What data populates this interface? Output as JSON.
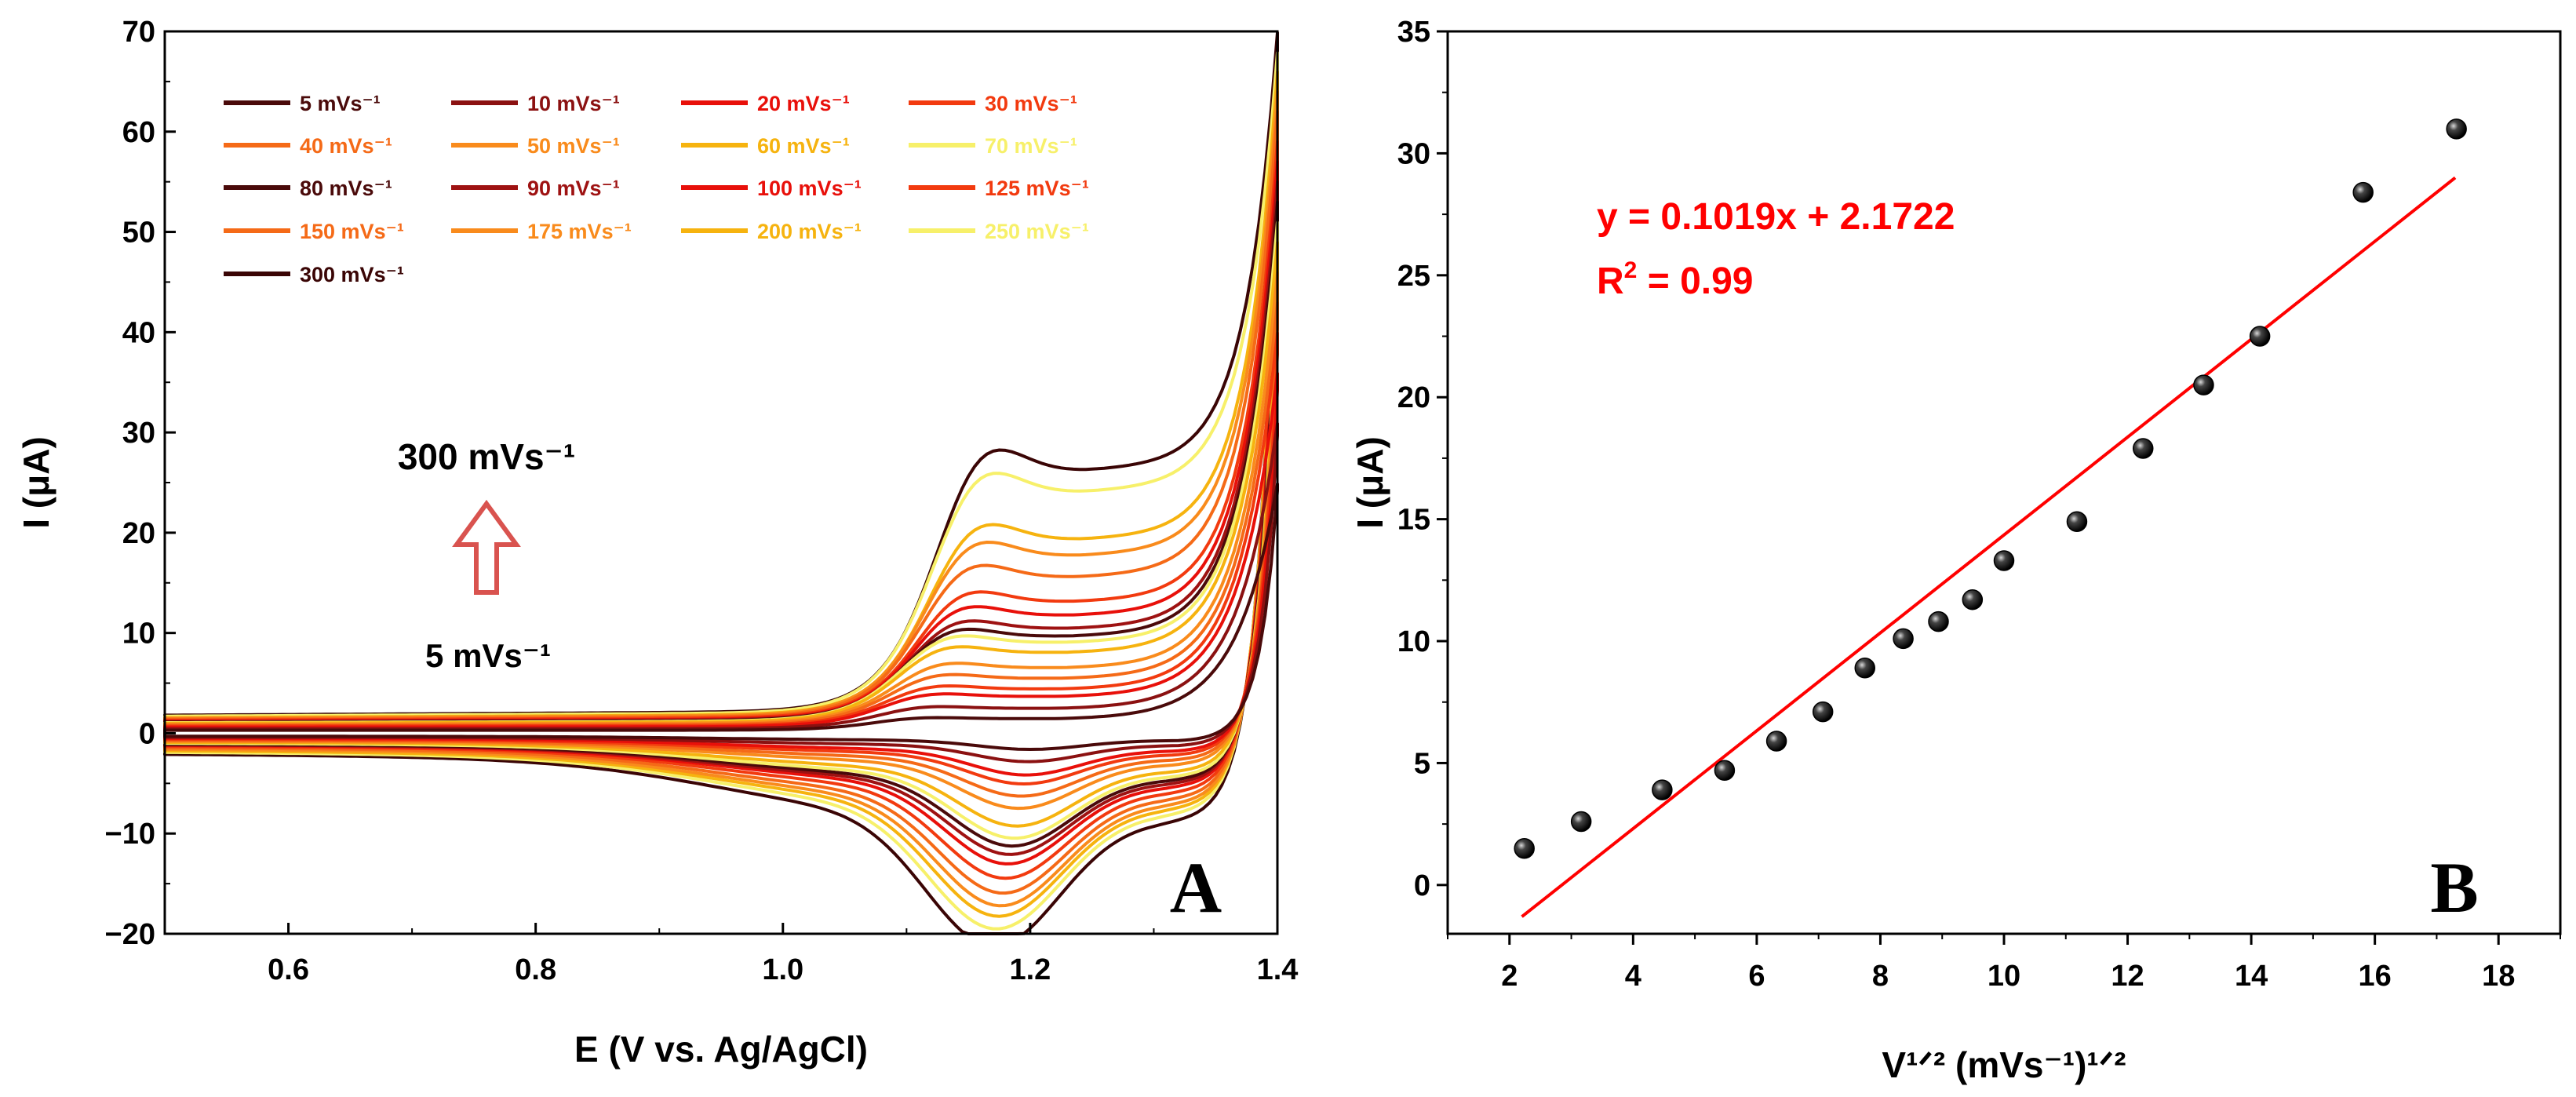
{
  "chart_data": [
    {
      "panel": "A",
      "type": "line",
      "xlabel": "E (V vs. Ag/AgCl)",
      "ylabel": "I (μA)",
      "xlim": [
        0.5,
        1.4
      ],
      "ylim": [
        -20,
        70
      ],
      "xticks": [
        "0.6",
        "0.8",
        "1.0",
        "1.2",
        "1.4"
      ],
      "yticks": [
        "−20",
        "−10",
        "0",
        "10",
        "20",
        "30",
        "40",
        "50",
        "60",
        "70"
      ],
      "legend_placement": "top-left",
      "annotations": {
        "top": "300 mVs⁻¹",
        "bottom": "5 mVs⁻¹",
        "arrow": "up"
      },
      "series": [
        {
          "name": "5 mVs⁻¹",
          "color": "#4a0a0a",
          "anodic_peak": 1.5,
          "cathodic_peak": -1.2,
          "ox_mid": 0.3,
          "red_mid": -0.3,
          "vertex_current": 25.0
        },
        {
          "name": "10 mVs⁻¹",
          "color": "#8b1111",
          "anodic_peak": 2.6,
          "cathodic_peak": -2.2,
          "ox_mid": 0.45,
          "red_mid": -0.4,
          "vertex_current": 31.0
        },
        {
          "name": "20 mVs⁻¹",
          "color": "#e8100a",
          "anodic_peak": 3.9,
          "cathodic_peak": -3.3,
          "ox_mid": 0.6,
          "red_mid": -0.5,
          "vertex_current": 36.0
        },
        {
          "name": "30 mVs⁻¹",
          "color": "#f23a0f",
          "anodic_peak": 4.7,
          "cathodic_peak": -4.0,
          "ox_mid": 0.7,
          "red_mid": -0.6,
          "vertex_current": 40.0
        },
        {
          "name": "40 mVs⁻¹",
          "color": "#f56a17",
          "anodic_peak": 5.9,
          "cathodic_peak": -5.0,
          "ox_mid": 0.8,
          "red_mid": -0.7,
          "vertex_current": 43.0
        },
        {
          "name": "50 mVs⁻¹",
          "color": "#f98b1c",
          "anodic_peak": 7.1,
          "cathodic_peak": -6.0,
          "ox_mid": 0.9,
          "red_mid": -0.8,
          "vertex_current": 46.0
        },
        {
          "name": "60 mVs⁻¹",
          "color": "#f6b30f",
          "anodic_peak": 8.9,
          "cathodic_peak": -7.5,
          "ox_mid": 1.0,
          "red_mid": -0.9,
          "vertex_current": 49.0
        },
        {
          "name": "70 mVs⁻¹",
          "color": "#f7f06a",
          "anodic_peak": 10.1,
          "cathodic_peak": -8.5,
          "ox_mid": 1.05,
          "red_mid": -1.0,
          "vertex_current": 51.0
        },
        {
          "name": "80 mVs⁻¹",
          "color": "#4a0a0a",
          "anodic_peak": 10.8,
          "cathodic_peak": -9.1,
          "ox_mid": 1.1,
          "red_mid": -1.1,
          "vertex_current": 53.0
        },
        {
          "name": "90 mVs⁻¹",
          "color": "#9e1212",
          "anodic_peak": 11.7,
          "cathodic_peak": -9.8,
          "ox_mid": 1.15,
          "red_mid": -1.15,
          "vertex_current": 55.0
        },
        {
          "name": "100 mVs⁻¹",
          "color": "#e8100a",
          "anodic_peak": 13.3,
          "cathodic_peak": -10.6,
          "ox_mid": 1.2,
          "red_mid": -1.2,
          "vertex_current": 57.0
        },
        {
          "name": "125 mVs⁻¹",
          "color": "#f23a0f",
          "anodic_peak": 14.9,
          "cathodic_peak": -11.8,
          "ox_mid": 1.3,
          "red_mid": -1.3,
          "vertex_current": 59.0
        },
        {
          "name": "150 mVs⁻¹",
          "color": "#f56a17",
          "anodic_peak": 17.9,
          "cathodic_peak": -13.0,
          "ox_mid": 1.4,
          "red_mid": -1.45,
          "vertex_current": 62.0
        },
        {
          "name": "175 mVs⁻¹",
          "color": "#f98b1c",
          "anodic_peak": 20.5,
          "cathodic_peak": -14.0,
          "ox_mid": 1.5,
          "red_mid": -1.6,
          "vertex_current": 64.0
        },
        {
          "name": "200 mVs⁻¹",
          "color": "#f6b30f",
          "anodic_peak": 22.5,
          "cathodic_peak": -14.8,
          "ox_mid": 1.55,
          "red_mid": -1.75,
          "vertex_current": 66.0
        },
        {
          "name": "250 mVs⁻¹",
          "color": "#f7f06a",
          "anodic_peak": 28.4,
          "cathodic_peak": -15.8,
          "ox_mid": 1.7,
          "red_mid": -1.9,
          "vertex_current": 68.0
        },
        {
          "name": "300 mVs⁻¹",
          "color": "#3a0505",
          "anodic_peak": 31.0,
          "cathodic_peak": -17.2,
          "ox_mid": 1.8,
          "red_mid": -2.1,
          "vertex_current": 70.0
        }
      ],
      "panel_label": "A"
    },
    {
      "panel": "B",
      "type": "scatter",
      "xlabel": "V¹ᐟ² (mVs⁻¹)¹ᐟ²",
      "ylabel": "I (μA)",
      "xlim": [
        1,
        19
      ],
      "ylim": [
        -2,
        35
      ],
      "xticks": [
        "2",
        "4",
        "6",
        "8",
        "10",
        "12",
        "14",
        "16",
        "18"
      ],
      "yticks": [
        "0",
        "5",
        "10",
        "15",
        "20",
        "25",
        "30",
        "35"
      ],
      "points": [
        {
          "x": 2.24,
          "y": 1.5
        },
        {
          "x": 3.16,
          "y": 2.6
        },
        {
          "x": 4.47,
          "y": 3.9
        },
        {
          "x": 5.48,
          "y": 4.7
        },
        {
          "x": 6.32,
          "y": 5.9
        },
        {
          "x": 7.07,
          "y": 7.1
        },
        {
          "x": 7.75,
          "y": 8.9
        },
        {
          "x": 8.37,
          "y": 10.1
        },
        {
          "x": 8.94,
          "y": 10.8
        },
        {
          "x": 9.49,
          "y": 11.7
        },
        {
          "x": 10.0,
          "y": 13.3
        },
        {
          "x": 11.18,
          "y": 14.9
        },
        {
          "x": 12.25,
          "y": 17.9
        },
        {
          "x": 13.23,
          "y": 20.5
        },
        {
          "x": 14.14,
          "y": 22.5
        },
        {
          "x": 15.81,
          "y": 28.4
        },
        {
          "x": 17.32,
          "y": 31.0
        }
      ],
      "fit": {
        "slope": 0.1019,
        "intercept": 2.1722,
        "line_x": [
          2.2,
          17.3
        ],
        "color": "#ff0000"
      },
      "equation": "y = 0.1019x + 2.1722",
      "r_squared_label": "R",
      "r_squared_sup": "2",
      "r_squared_value": " = 0.99",
      "panel_label": "B"
    }
  ]
}
